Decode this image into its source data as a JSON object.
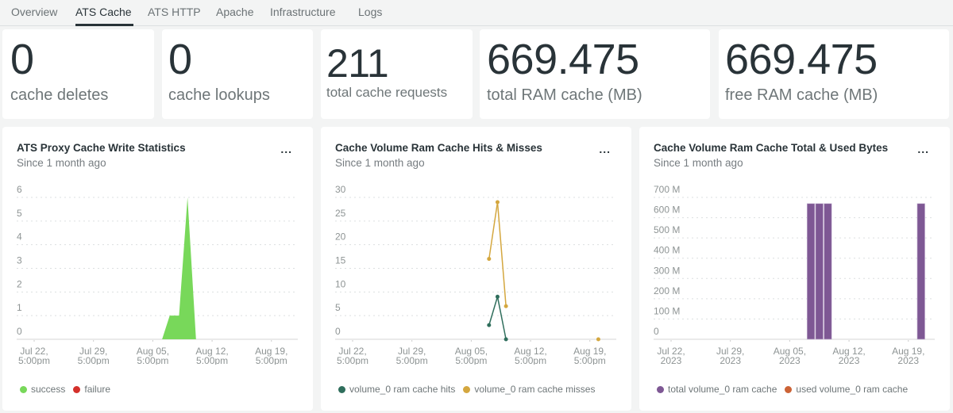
{
  "tabs": [
    {
      "label": "Overview",
      "active": false
    },
    {
      "label": "ATS Cache",
      "active": true
    },
    {
      "label": "ATS HTTP",
      "active": false
    },
    {
      "label": "Apache",
      "active": false
    },
    {
      "label": "Infrastructure",
      "active": false
    },
    {
      "label": "Logs",
      "active": false
    }
  ],
  "billboards": [
    {
      "value": "0",
      "label": "cache deletes"
    },
    {
      "value": "0",
      "label": "cache lookups"
    },
    {
      "value": "211",
      "label": "total cache requests"
    },
    {
      "value": "669.475",
      "label": "total RAM cache (MB)"
    },
    {
      "value": "669.475",
      "label": "free RAM cache (MB)"
    }
  ],
  "menu_label": "...",
  "chart_data": [
    {
      "type": "area",
      "title": "ATS Proxy Cache Write Statistics",
      "subtitle": "Since 1 month ago",
      "xlabel": "",
      "ylabel": "",
      "ylim": [
        0,
        6
      ],
      "yticks": [
        "0",
        "1",
        "2",
        "3",
        "4",
        "5",
        "6"
      ],
      "xticks": [
        {
          "line1": "Jul 22,",
          "line2": "5:00pm",
          "day": 0
        },
        {
          "line1": "Jul 29,",
          "line2": "5:00pm",
          "day": 7
        },
        {
          "line1": "Aug 05,",
          "line2": "5:00pm",
          "day": 14
        },
        {
          "line1": "Aug 12,",
          "line2": "5:00pm",
          "day": 21
        },
        {
          "line1": "Aug 19,",
          "line2": "5:00pm",
          "day": 28
        }
      ],
      "xlim": [
        -2,
        31
      ],
      "grid": true,
      "legend_position": "bottom-left",
      "series": [
        {
          "name": "success",
          "color": "#78d85a",
          "points": [
            [
              15.1,
              0
            ],
            [
              16.0,
              1
            ],
            [
              17.1,
              1
            ],
            [
              18.1,
              6
            ],
            [
              19.1,
              0
            ]
          ]
        },
        {
          "name": "failure",
          "color": "#d4302b",
          "points": []
        }
      ]
    },
    {
      "type": "line",
      "title": "Cache Volume Ram Cache Hits & Misses",
      "subtitle": "Since 1 month ago",
      "xlabel": "",
      "ylabel": "",
      "ylim": [
        0,
        30
      ],
      "yticks": [
        "0",
        "5",
        "10",
        "15",
        "20",
        "25",
        "30"
      ],
      "xticks": [
        {
          "line1": "Jul 22,",
          "line2": "5:00pm",
          "day": 0
        },
        {
          "line1": "Jul 29,",
          "line2": "5:00pm",
          "day": 7
        },
        {
          "line1": "Aug 05,",
          "line2": "5:00pm",
          "day": 14
        },
        {
          "line1": "Aug 12,",
          "line2": "5:00pm",
          "day": 21
        },
        {
          "line1": "Aug 19,",
          "line2": "5:00pm",
          "day": 28
        }
      ],
      "xlim": [
        -2,
        31
      ],
      "grid": true,
      "legend_position": "bottom-left",
      "series": [
        {
          "name": "volume_0 ram cache hits",
          "color": "#2f6e5c",
          "points": [
            [
              16.1,
              3
            ],
            [
              17.1,
              9
            ],
            [
              18.1,
              0
            ]
          ]
        },
        {
          "name": "volume_0 ram cache misses",
          "color": "#d4a73f",
          "points": [
            [
              16.1,
              17
            ],
            [
              17.1,
              29
            ],
            [
              18.1,
              7
            ],
            [
              29.0,
              0
            ]
          ]
        }
      ]
    },
    {
      "type": "bar",
      "title": "Cache Volume Ram Cache Total & Used Bytes",
      "subtitle": "Since 1 month ago",
      "xlabel": "",
      "ylabel": "",
      "ylim": [
        0,
        700
      ],
      "yunit": "M",
      "yticks": [
        "0",
        "100 M",
        "200 M",
        "300 M",
        "400 M",
        "500 M",
        "600 M",
        "700 M"
      ],
      "xticks": [
        {
          "line1": "Jul 22,",
          "line2": "2023",
          "day": 0
        },
        {
          "line1": "Jul 29,",
          "line2": "2023",
          "day": 7
        },
        {
          "line1": "Aug 05,",
          "line2": "2023",
          "day": 14
        },
        {
          "line1": "Aug 12,",
          "line2": "2023",
          "day": 21
        },
        {
          "line1": "Aug 19,",
          "line2": "2023",
          "day": 28
        }
      ],
      "xlim": [
        -2,
        31
      ],
      "grid": true,
      "legend_position": "bottom-left",
      "series": [
        {
          "name": "total volume_0 ram cache",
          "color": "#7e5894",
          "bars": [
            [
              16.5,
              669.475
            ],
            [
              17.5,
              669.475
            ],
            [
              18.5,
              669.475
            ],
            [
              29.5,
              669.475
            ]
          ]
        },
        {
          "name": "used volume_0 ram cache",
          "color": "#cc6336",
          "bars": []
        }
      ]
    }
  ]
}
